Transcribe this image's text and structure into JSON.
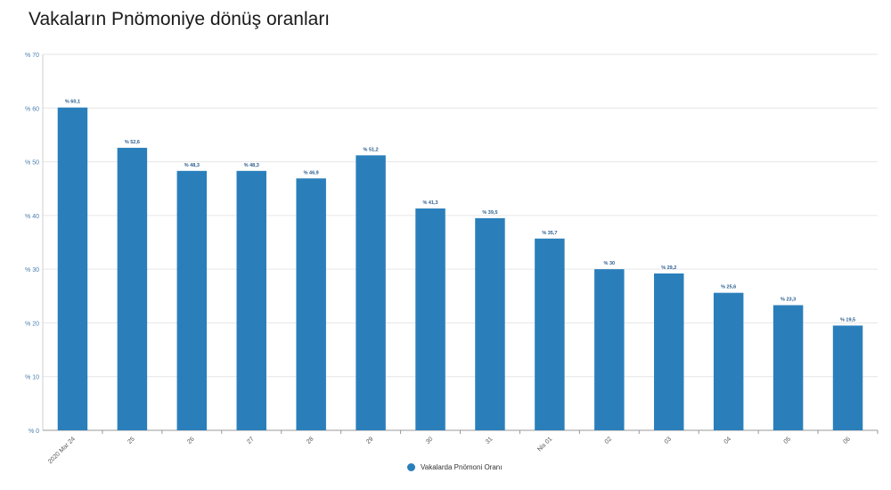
{
  "title": "Vakaların Pnömoniye dönüş oranları",
  "colors": {
    "bar": "#2a7fbb",
    "grid": "#e6e6e6",
    "axis_text": "#4a7fb0",
    "label_text": "#2a5d8f",
    "tick_label": "#555555"
  },
  "chart_data": {
    "type": "bar",
    "categories": [
      "2020 Mar 24",
      "25",
      "26",
      "27",
      "28",
      "29",
      "30",
      "31",
      "Nis 01",
      "02",
      "03",
      "04",
      "05",
      "06"
    ],
    "series": [
      {
        "name": "Vakalarda Pnömoni Oranı",
        "values": [
          60.1,
          52.6,
          48.3,
          48.3,
          46.9,
          51.2,
          41.3,
          39.5,
          35.7,
          30,
          29.2,
          25.6,
          23.3,
          19.5
        ]
      }
    ],
    "data_labels": [
      "% 60,1",
      "% 52,6",
      "% 48,3",
      "% 48,3",
      "% 46,9",
      "% 51,2",
      "% 41,3",
      "% 39,5",
      "% 35,7",
      "% 30",
      "% 29,2",
      "% 25,6",
      "% 23,3",
      "% 19,5"
    ],
    "ylim": [
      0,
      70
    ],
    "y_ticks": [
      0,
      10,
      20,
      30,
      40,
      50,
      60,
      70
    ],
    "y_tick_labels": [
      "% 0",
      "% 10",
      "% 20",
      "% 30",
      "% 40",
      "% 50",
      "% 60",
      "% 70"
    ],
    "grid": true,
    "legend_position": "bottom-center"
  },
  "legend": {
    "label": "Vakalarda Pnömoni Oranı"
  }
}
